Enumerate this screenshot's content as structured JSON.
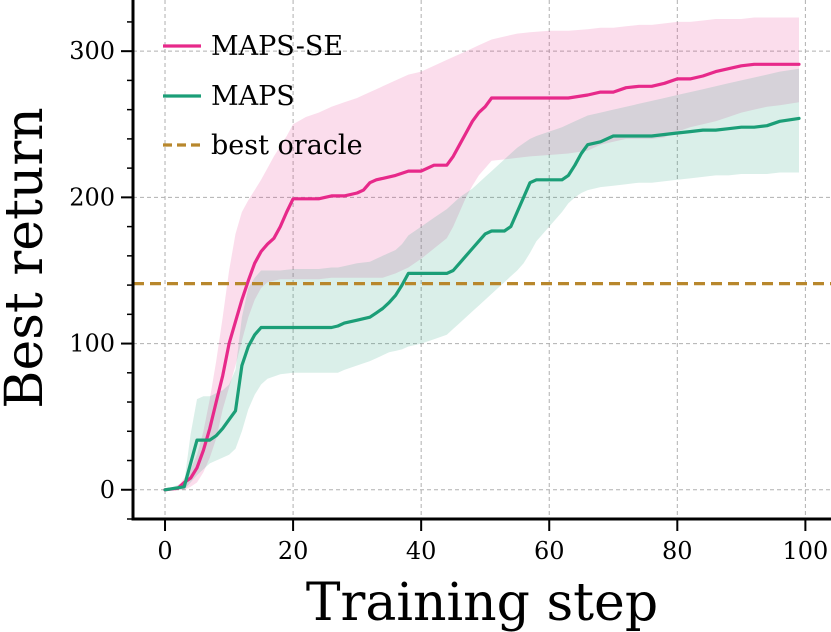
{
  "chart_data": {
    "type": "line",
    "title": "",
    "xlabel": "Training step",
    "ylabel": "Best return",
    "xlim": [
      -5,
      104
    ],
    "ylim": [
      -20,
      335
    ],
    "xticks": [
      0,
      20,
      40,
      60,
      80,
      100
    ],
    "yticks": [
      0,
      100,
      200,
      300
    ],
    "xtick_labels": [
      "0",
      "20",
      "40",
      "60",
      "80",
      "100"
    ],
    "ytick_labels": [
      "0",
      "100",
      "200",
      "300"
    ],
    "yminor_step": 20,
    "grid": true,
    "legend_position": "top-left",
    "series": [
      {
        "name": "MAPS-SE",
        "color": "#e7298a",
        "style": "solid",
        "x": [
          0,
          2,
          3,
          4,
          5,
          6,
          7,
          8,
          9,
          10,
          11,
          12,
          13,
          14,
          15,
          16,
          17,
          18,
          19,
          20,
          22,
          24,
          26,
          28,
          30,
          31,
          32,
          33,
          34,
          36,
          38,
          40,
          42,
          44,
          45,
          46,
          47,
          48,
          49,
          50,
          51,
          53,
          55,
          57,
          60,
          63,
          66,
          68,
          70,
          72,
          74,
          76,
          78,
          80,
          82,
          84,
          86,
          88,
          90,
          92,
          94,
          96,
          99
        ],
        "values": [
          0,
          1,
          5,
          8,
          15,
          27,
          42,
          60,
          78,
          100,
          115,
          130,
          143,
          155,
          163,
          168,
          172,
          180,
          190,
          199,
          199,
          199,
          201,
          201,
          203,
          205,
          210,
          212,
          213,
          215,
          218,
          218,
          222,
          222,
          228,
          236,
          244,
          252,
          258,
          262,
          268,
          268,
          268,
          268,
          268,
          268,
          270,
          272,
          272,
          275,
          276,
          276,
          278,
          281,
          281,
          283,
          286,
          288,
          290,
          291,
          291,
          291,
          291
        ],
        "band_low": [
          0,
          0,
          0,
          2,
          5,
          12,
          22,
          35,
          55,
          70,
          85,
          102,
          118,
          130,
          138,
          142,
          143,
          144,
          144,
          144,
          144,
          144,
          145,
          145,
          145,
          145,
          145,
          145,
          145,
          148,
          152,
          158,
          165,
          172,
          180,
          190,
          200,
          208,
          215,
          220,
          225,
          226,
          227,
          228,
          229,
          230,
          232,
          236,
          238,
          240,
          240,
          240,
          241,
          245,
          248,
          250,
          252,
          255,
          258,
          260,
          262,
          263,
          265
        ],
        "band_high": [
          0,
          2,
          8,
          14,
          24,
          40,
          62,
          88,
          118,
          150,
          175,
          190,
          198,
          205,
          212,
          220,
          228,
          235,
          242,
          250,
          255,
          258,
          262,
          265,
          268,
          270,
          272,
          274,
          276,
          280,
          284,
          286,
          290,
          294,
          296,
          298,
          300,
          302,
          304,
          306,
          308,
          310,
          312,
          313,
          314,
          314,
          315,
          316,
          316,
          317,
          318,
          318,
          319,
          320,
          320,
          321,
          322,
          322,
          322,
          323,
          323,
          323,
          323
        ]
      },
      {
        "name": "MAPS",
        "color": "#1b9e77",
        "style": "solid",
        "x": [
          0,
          3,
          4,
          5,
          6,
          7,
          8,
          9,
          10,
          11,
          12,
          13,
          14,
          15,
          16,
          18,
          20,
          22,
          24,
          26,
          27,
          28,
          30,
          32,
          33,
          34,
          35,
          36,
          37,
          38,
          40,
          42,
          44,
          45,
          46,
          47,
          48,
          49,
          50,
          51,
          52,
          53,
          54,
          55,
          56,
          57,
          58,
          60,
          62,
          63,
          64,
          65,
          66,
          68,
          70,
          72,
          74,
          76,
          78,
          80,
          82,
          84,
          86,
          88,
          90,
          92,
          94,
          96,
          99
        ],
        "values": [
          0,
          2,
          18,
          34,
          34,
          34,
          37,
          42,
          48,
          54,
          85,
          98,
          106,
          111,
          111,
          111,
          111,
          111,
          111,
          111,
          112,
          114,
          116,
          118,
          121,
          124,
          128,
          133,
          140,
          148,
          148,
          148,
          148,
          150,
          155,
          160,
          165,
          170,
          175,
          177,
          177,
          177,
          180,
          190,
          200,
          210,
          212,
          212,
          212,
          215,
          222,
          230,
          236,
          238,
          242,
          242,
          242,
          242,
          243,
          244,
          245,
          246,
          246,
          247,
          248,
          248,
          249,
          252,
          254
        ],
        "band_low": [
          0,
          0,
          5,
          10,
          14,
          18,
          20,
          22,
          24,
          28,
          40,
          55,
          65,
          72,
          76,
          79,
          80,
          80,
          80,
          80,
          80,
          82,
          85,
          88,
          90,
          92,
          94,
          95,
          96,
          98,
          100,
          103,
          106,
          110,
          114,
          118,
          122,
          126,
          130,
          134,
          138,
          142,
          146,
          150,
          155,
          162,
          170,
          180,
          190,
          196,
          200,
          203,
          205,
          207,
          208,
          209,
          210,
          210,
          211,
          212,
          213,
          214,
          215,
          215,
          216,
          216,
          216,
          217,
          217
        ],
        "band_high": [
          0,
          5,
          38,
          62,
          64,
          64,
          66,
          68,
          72,
          82,
          118,
          138,
          145,
          150,
          150,
          150,
          151,
          151,
          151,
          152,
          152,
          153,
          155,
          156,
          158,
          160,
          162,
          164,
          168,
          174,
          180,
          186,
          192,
          196,
          200,
          203,
          206,
          210,
          214,
          218,
          222,
          226,
          230,
          234,
          237,
          240,
          242,
          245,
          248,
          250,
          252,
          254,
          256,
          258,
          260,
          262,
          264,
          266,
          268,
          270,
          272,
          274,
          276,
          278,
          280,
          282,
          284,
          286,
          288
        ]
      },
      {
        "name": "best oracle",
        "color": "#b8872c",
        "style": "dashed",
        "constant": 141
      }
    ]
  }
}
